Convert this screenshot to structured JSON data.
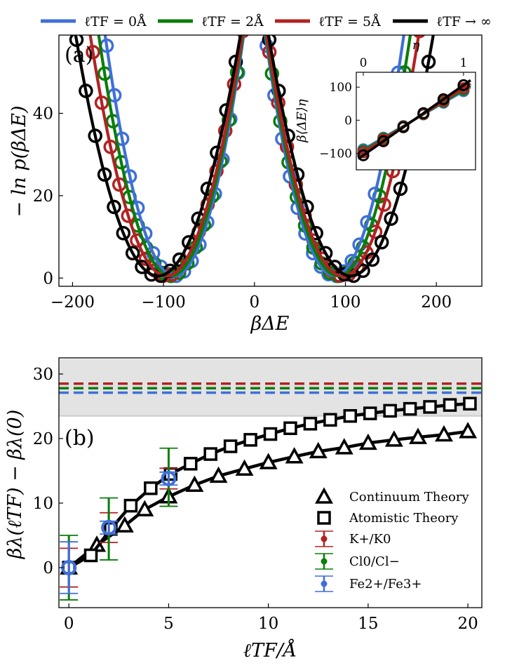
{
  "top_legend": [
    {
      "label": "ℓTF = 0Å",
      "color": "#3f6fd8"
    },
    {
      "label": "ℓTF = 2Å",
      "color": "#0a7d0a"
    },
    {
      "label": "ℓTF = 5Å",
      "color": "#b22222"
    },
    {
      "label": "ℓTF → ∞",
      "color": "#000000"
    }
  ],
  "chart_data": [
    {
      "panel": "(a)",
      "type": "line",
      "title": "",
      "xlabel": "βΔE",
      "ylabel": "− ln p(βΔE)",
      "xlim": [
        -215,
        250
      ],
      "ylim": [
        -2,
        59
      ],
      "xticks": [
        -200,
        -100,
        0,
        100,
        200
      ],
      "yticks": [
        0,
        20,
        40
      ],
      "series": [
        {
          "name": "ℓTF = 0Å",
          "color": "#3f6fd8",
          "center_left": -88,
          "center_right": 88,
          "curvature": 0.00325
        },
        {
          "name": "ℓTF = 2Å",
          "color": "#0a7d0a",
          "center_left": -92,
          "center_right": 92,
          "curvature": 0.003
        },
        {
          "name": "ℓTF = 5Å",
          "color": "#b22222",
          "center_left": -97,
          "center_right": 97,
          "curvature": 0.0027
        },
        {
          "name": "ℓTF → ∞",
          "color": "#000000",
          "center_left": -106,
          "center_right": 106,
          "curvature": 0.0023
        }
      ],
      "inset": {
        "xlabel": "η",
        "ylabel": "β⟨ΔE⟩η",
        "xlim": [
          -0.07,
          1.12
        ],
        "ylim": [
          -150,
          145
        ],
        "xticks": [
          0,
          1
        ],
        "yticks": [
          -100,
          0,
          100
        ],
        "series": [
          {
            "name": "ℓTF = 0Å",
            "color": "#3f6fd8",
            "start": -88,
            "end": 88
          },
          {
            "name": "ℓTF = 2Å",
            "color": "#0a7d0a",
            "start": -92,
            "end": 92
          },
          {
            "name": "ℓTF = 5Å",
            "color": "#b22222",
            "start": -97,
            "end": 97
          },
          {
            "name": "ℓTF → ∞",
            "color": "#000000",
            "start": -106,
            "end": 106
          }
        ]
      }
    },
    {
      "panel": "(b)",
      "type": "line",
      "title": "",
      "xlabel": "ℓTF/Å",
      "ylabel": "βλ(ℓTF) − βλ(0)",
      "xlim": [
        -0.5,
        20.7
      ],
      "ylim": [
        -6.2,
        32.5
      ],
      "xticks": [
        0,
        5,
        10,
        15,
        20
      ],
      "yticks": [
        0,
        10,
        20,
        30
      ],
      "shaded_band": [
        23.5,
        32.3
      ],
      "hlines": [
        {
          "y": 28.5,
          "color": "#b22222"
        },
        {
          "y": 27.8,
          "color": "#0a7d0a"
        },
        {
          "y": 27.1,
          "color": "#3f6fd8"
        }
      ],
      "continuum": {
        "name": "Continuum Theory",
        "x": [
          0,
          1.4,
          2.8,
          3.8,
          5.0,
          6.3,
          7.5,
          8.8,
          10.0,
          11.3,
          12.5,
          13.8,
          15.0,
          16.3,
          17.5,
          18.8,
          20.0
        ],
        "y": [
          0,
          3.5,
          6.5,
          9.0,
          11.0,
          12.8,
          14.2,
          15.3,
          16.3,
          17.2,
          18.0,
          18.6,
          19.3,
          19.8,
          20.2,
          20.6,
          21.1
        ]
      },
      "atomistic": {
        "name": "Atomistic Theory",
        "x": [
          0,
          1.1,
          2.1,
          3.1,
          4.1,
          5.1,
          6.1,
          7.1,
          8.1,
          9.1,
          10.1,
          11.1,
          12.1,
          13.1,
          14.1,
          15.1,
          16.1,
          17.1,
          18.1,
          19.1,
          20.1
        ],
        "y": [
          0,
          1.9,
          6.0,
          9.6,
          12.3,
          14.5,
          16.1,
          17.6,
          18.8,
          19.8,
          20.7,
          21.6,
          22.3,
          22.9,
          23.5,
          23.9,
          24.3,
          24.6,
          24.9,
          25.2,
          25.4
        ]
      },
      "error_series": [
        {
          "name": "K+/K0",
          "color": "#b22222",
          "x": [
            0,
            2,
            5
          ],
          "y": [
            0,
            6.2,
            13.8
          ],
          "err": [
            3.0,
            2.3,
            1.6
          ]
        },
        {
          "name": "Cl0/Cl−",
          "color": "#0a7d0a",
          "x": [
            0,
            2,
            5
          ],
          "y": [
            0,
            6.0,
            14.0
          ],
          "err": [
            5.0,
            4.8,
            4.5
          ]
        },
        {
          "name": "Fe2+/Fe3+",
          "color": "#3f6fd8",
          "x": [
            0,
            2,
            5
          ],
          "y": [
            0,
            6.2,
            13.8
          ],
          "err": [
            4.0,
            1.0,
            1.0
          ]
        }
      ]
    }
  ]
}
